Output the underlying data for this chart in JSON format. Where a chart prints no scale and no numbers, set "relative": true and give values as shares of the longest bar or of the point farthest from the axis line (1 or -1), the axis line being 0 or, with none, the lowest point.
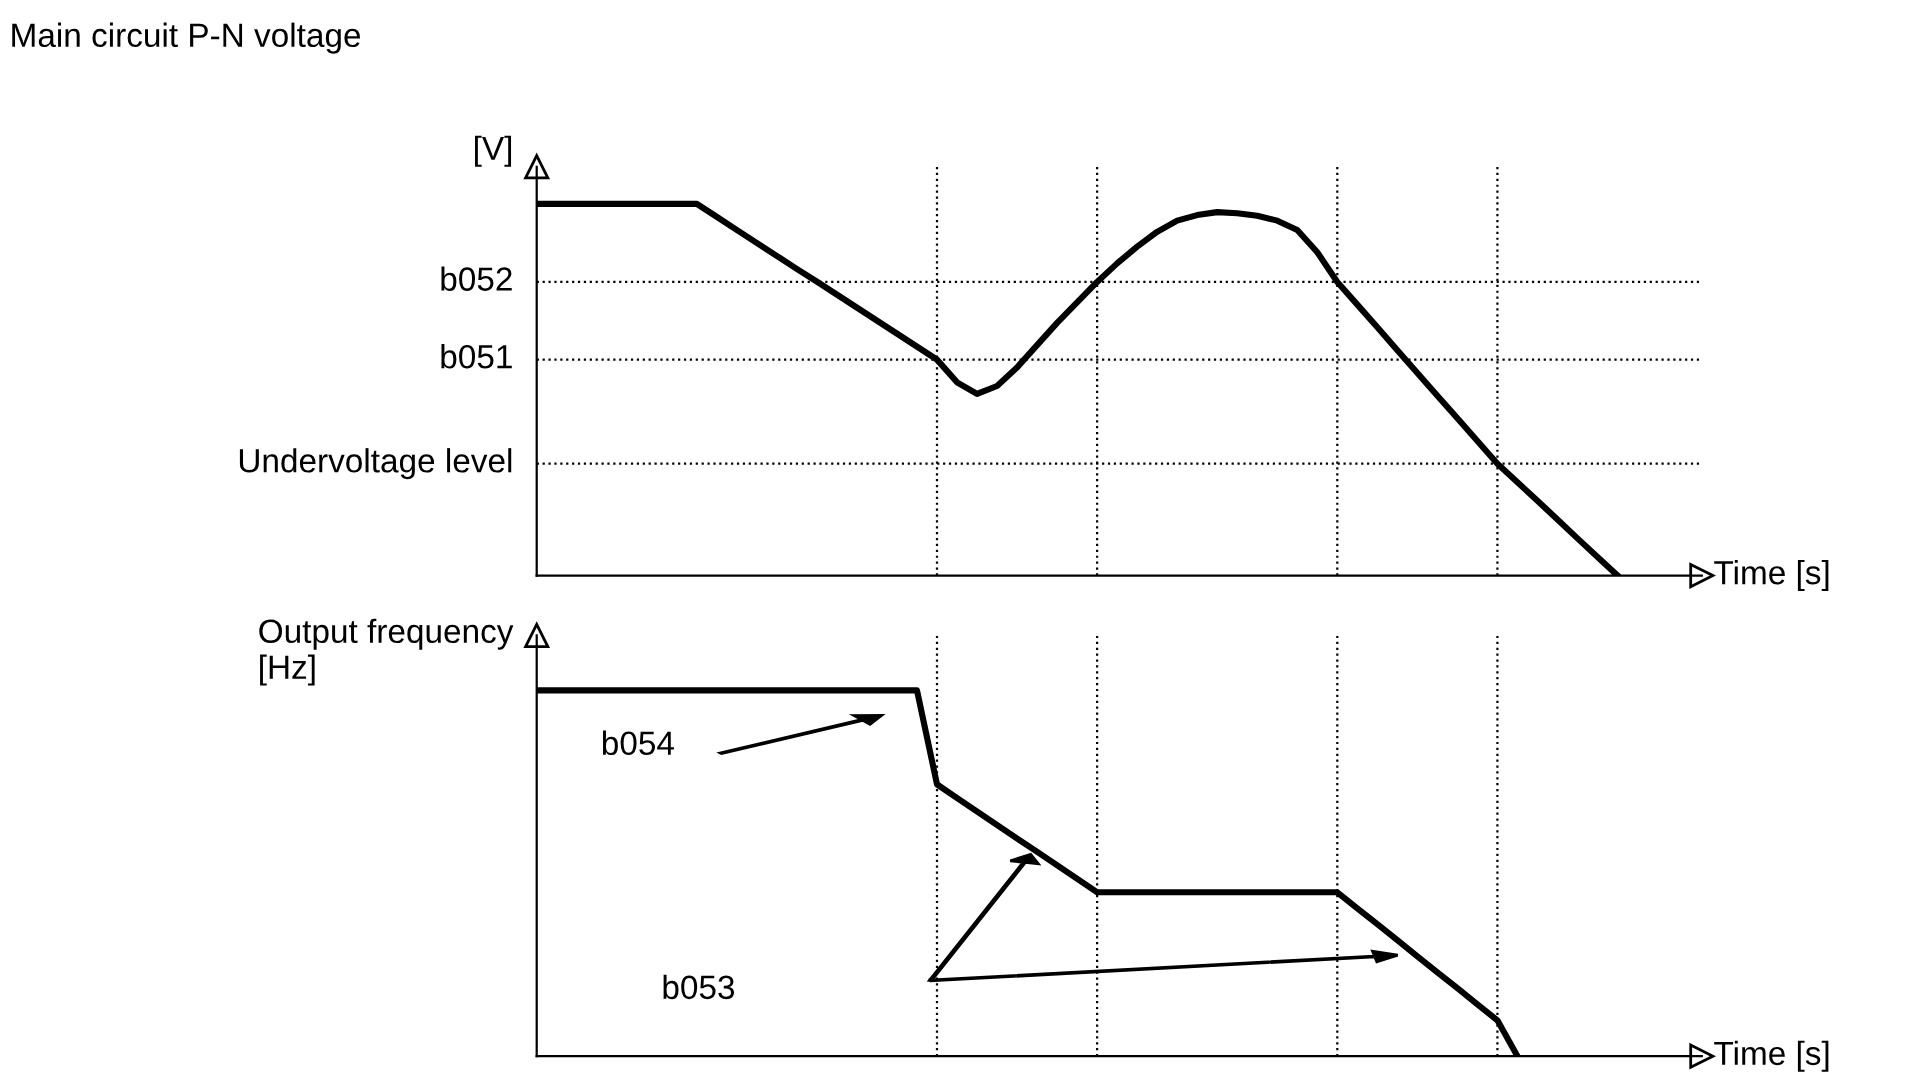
{
  "chart_data": [
    {
      "type": "line",
      "relative": true,
      "grid": "x",
      "ylabel": "Main circuit P-N voltage",
      "xlabel": "Time [s]",
      "categories": [
        null,
        null,
        null,
        null,
        null,
        null,
        null,
        null,
        null,
        null,
        null,
        null,
        null,
        null,
        null,
        null,
        null,
        null,
        null,
        null,
        null,
        null,
        null,
        null,
        null,
        null,
        null,
        null,
        null,
        null,
        null,
        null,
        null,
        null,
        null,
        null,
        null,
        null,
        null,
        null,
        null,
        null,
        null,
        null,
        null,
        null,
        null,
        null,
        null,
        null,
        null,
        null,
        null,
        null,
        null
      ],
      "series": [
        {
          "color": "#000000",
          "values": [
            1,
            1,
            1,
            1,
            1,
            1,
            1,
            1,
            1,
            0.965,
            0.93,
            0.895,
            0.86,
            0.825,
            0.791,
            0.756,
            0.721,
            0.686,
            0.651,
            0.616,
            0.581,
            0.52,
            0.489,
            0.51,
            0.56,
            0.62,
            0.68,
            0.735,
            0.79,
            0.84,
            0.885,
            0.925,
            0.955,
            0.97,
            0.978,
            0.975,
            0.968,
            0.955,
            0.93,
            0.87,
            0.79,
            0.729,
            0.668,
            0.606,
            0.545,
            0.484,
            0.423,
            0.362,
            0.301,
            0.251,
            0.201,
            0.151,
            0.1,
            0.05,
            0
          ]
        }
      ],
      "annotations": [
        "[V]"
      ],
      "ref_lines": [
        {
          "axis": "y",
          "value": 0.79,
          "label": "b052"
        },
        {
          "axis": "y",
          "value": 0.581,
          "label": "b051"
        },
        {
          "axis": "y",
          "value": 0.301,
          "label": "Undervoltage level"
        }
      ]
    },
    {
      "type": "line",
      "relative": true,
      "grid": "x",
      "ylabel": "Output frequency\n[Hz]",
      "xlabel": "Time [s]",
      "categories": [
        null,
        null,
        null,
        null,
        null,
        null,
        null,
        null,
        null,
        null,
        null,
        null,
        null,
        null,
        null,
        null,
        null,
        null,
        null,
        null,
        null,
        null,
        null,
        null,
        null,
        null,
        null,
        null,
        null,
        null,
        null,
        null,
        null,
        null,
        null,
        null,
        null,
        null,
        null,
        null,
        null,
        null,
        null,
        null,
        null,
        null,
        null,
        null,
        null,
        null,
        null,
        null,
        null,
        null,
        null
      ],
      "series": [
        {
          "color": "#000000",
          "values": [
            1,
            1,
            1,
            1,
            1,
            1,
            1,
            1,
            1,
            1,
            1,
            1,
            1,
            1,
            1,
            1,
            1,
            1,
            1,
            1,
            0.743,
            0.706,
            0.669,
            0.632,
            0.595,
            0.559,
            0.522,
            0.485,
            0.448,
            0.448,
            0.448,
            0.448,
            0.448,
            0.448,
            0.448,
            0.448,
            0.448,
            0.448,
            0.448,
            0.448,
            0.448,
            0.404,
            0.361,
            0.317,
            0.273,
            0.229,
            0.186,
            0.142,
            0.098,
            0,
            null,
            null,
            null,
            null,
            null
          ]
        }
      ],
      "annotations": [
        "b054",
        "b053"
      ]
    }
  ]
}
